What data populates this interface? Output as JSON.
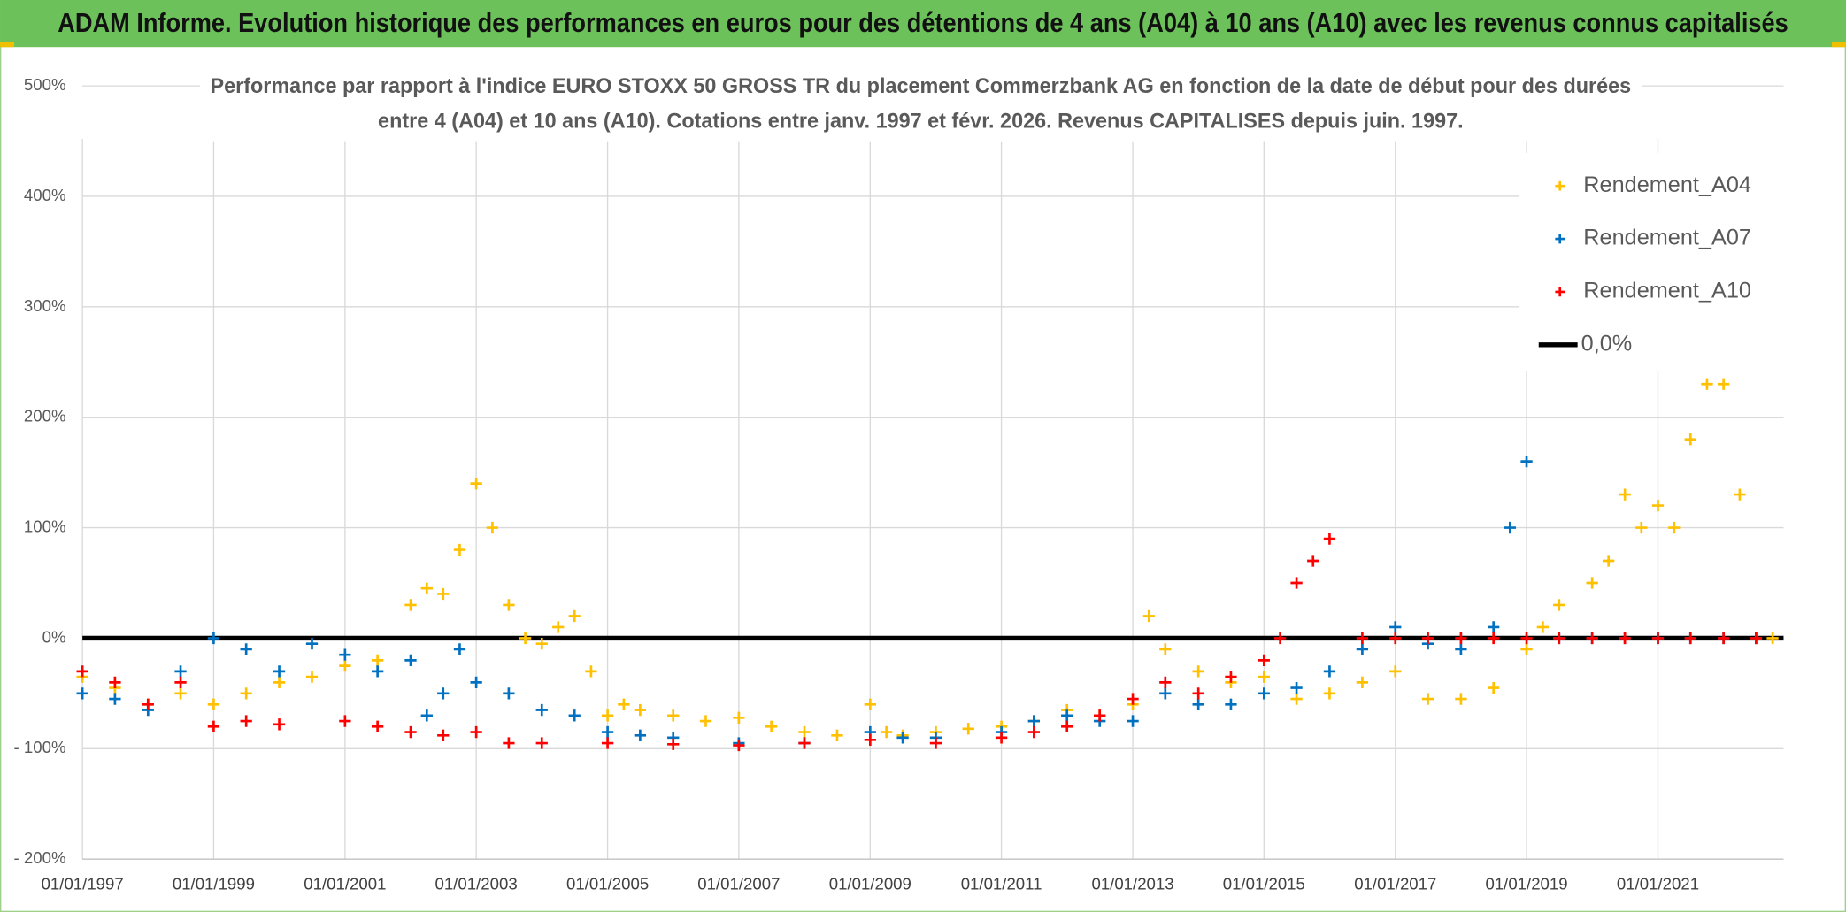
{
  "chart_data": {
    "type": "scatter",
    "header": "ADAM Informe. Evolution historique des performances en euros pour des détentions de 4 ans (A04) à 10 ans (A10) avec les revenus connus capitalisés",
    "title": [
      "Performance  par rapport à l'indice EURO STOXX 50 GROSS TR  du placement Commerzbank AG en fonction de la date de début pour des durées",
      "entre 4 (A04) et 10 ans (A10). Cotations entre janv. 1997 et févr. 2026. Revenus CAPITALISES depuis juin. 1997."
    ],
    "xlim": [
      "01/01/1997",
      "01/12/2022"
    ],
    "xticks": [
      "01/01/1997",
      "01/01/1999",
      "01/01/2001",
      "01/01/2003",
      "01/01/2005",
      "01/01/2007",
      "01/01/2009",
      "01/01/2011",
      "01/01/2013",
      "01/01/2015",
      "01/01/2017",
      "01/01/2019",
      "01/01/2021"
    ],
    "ylim": [
      -200,
      500
    ],
    "yticks": [
      {
        "value": 500,
        "label": "500%"
      },
      {
        "value": 400,
        "label": "400%"
      },
      {
        "value": 300,
        "label": "300%"
      },
      {
        "value": 200,
        "label": "200%"
      },
      {
        "value": 100,
        "label": "100%"
      },
      {
        "value": 0,
        "label": "0%"
      },
      {
        "value": -100,
        "label": "- 100%"
      },
      {
        "value": -200,
        "label": "- 200%"
      }
    ],
    "grid": true,
    "legend": "top-right",
    "series": [
      {
        "name": "Rendement_A04",
        "color": "#ffc000",
        "x": [
          "01/01/1997",
          "01/07/1997",
          "01/01/1998",
          "01/07/1998",
          "01/01/1999",
          "01/07/1999",
          "01/01/2000",
          "01/07/2000",
          "01/01/2001",
          "01/07/2001",
          "01/01/2002",
          "01/04/2002",
          "01/07/2002",
          "01/10/2002",
          "01/01/2003",
          "01/04/2003",
          "01/07/2003",
          "01/10/2003",
          "01/01/2004",
          "01/04/2004",
          "01/07/2004",
          "01/10/2004",
          "01/01/2005",
          "01/04/2005",
          "01/07/2005",
          "01/01/2006",
          "01/07/2006",
          "01/01/2007",
          "01/07/2007",
          "01/01/2008",
          "01/07/2008",
          "01/01/2009",
          "01/04/2009",
          "01/07/2009",
          "01/01/2010",
          "01/07/2010",
          "01/01/2011",
          "01/07/2011",
          "01/01/2012",
          "01/07/2012",
          "01/01/2013",
          "01/04/2013",
          "01/07/2013",
          "01/01/2014",
          "01/07/2014",
          "01/01/2015",
          "01/07/2015",
          "01/01/2016",
          "01/07/2016",
          "01/01/2017",
          "01/07/2017",
          "01/01/2018",
          "01/07/2018",
          "01/01/2019",
          "01/04/2019",
          "01/07/2019",
          "01/01/2020",
          "01/04/2020",
          "01/07/2020",
          "01/10/2020",
          "01/01/2021",
          "01/04/2021",
          "01/07/2021",
          "01/10/2021",
          "01/01/2022",
          "01/04/2022",
          "01/07/2022",
          "01/10/2022"
        ],
        "values": [
          -35,
          -45,
          -60,
          -50,
          -60,
          -50,
          -40,
          -35,
          -25,
          -20,
          30,
          45,
          40,
          80,
          140,
          100,
          30,
          0,
          -5,
          10,
          20,
          -30,
          -70,
          -60,
          -65,
          -70,
          -75,
          -72,
          -80,
          -85,
          -88,
          -60,
          -85,
          -88,
          -85,
          -82,
          -80,
          -75,
          -65,
          -70,
          -60,
          20,
          -10,
          -30,
          -40,
          -35,
          -55,
          -50,
          -40,
          -30,
          -55,
          -55,
          -45,
          -10,
          10,
          30,
          50,
          70,
          130,
          100,
          120,
          100,
          180,
          230,
          230,
          130,
          0,
          0
        ]
      },
      {
        "name": "Rendement_A07",
        "color": "#0070c0",
        "x": [
          "01/01/1997",
          "01/07/1997",
          "01/01/1998",
          "01/07/1998",
          "01/01/1999",
          "01/07/1999",
          "01/01/2000",
          "01/07/2000",
          "01/01/2001",
          "01/07/2001",
          "01/01/2002",
          "01/04/2002",
          "01/07/2002",
          "01/10/2002",
          "01/01/2003",
          "01/07/2003",
          "01/01/2004",
          "01/07/2004",
          "01/01/2005",
          "01/07/2005",
          "01/01/2006",
          "01/01/2007",
          "01/01/2008",
          "01/01/2009",
          "01/07/2009",
          "01/01/2010",
          "01/01/2011",
          "01/07/2011",
          "01/01/2012",
          "01/07/2012",
          "01/01/2013",
          "01/07/2013",
          "01/01/2014",
          "01/07/2014",
          "01/01/2015",
          "01/07/2015",
          "01/01/2016",
          "01/07/2016",
          "01/01/2017",
          "01/07/2017",
          "01/01/2018",
          "01/07/2018",
          "01/10/2018",
          "01/01/2019",
          "01/07/2019",
          "01/01/2020",
          "01/07/2020",
          "01/01/2021",
          "01/07/2021",
          "01/01/2022",
          "01/07/2022"
        ],
        "values": [
          -50,
          -55,
          -65,
          -30,
          0,
          -10,
          -30,
          -5,
          -15,
          -30,
          -20,
          -70,
          -50,
          -10,
          -40,
          -50,
          -65,
          -70,
          -85,
          -88,
          -90,
          -95,
          -95,
          -85,
          -90,
          -90,
          -85,
          -75,
          -70,
          -75,
          -75,
          -50,
          -60,
          -60,
          -50,
          -45,
          -30,
          -10,
          10,
          -5,
          -10,
          10,
          100,
          160,
          0,
          0,
          0,
          0,
          0,
          0,
          0
        ]
      },
      {
        "name": "Rendement_A10",
        "color": "#ff0000",
        "x": [
          "01/01/1997",
          "01/07/1997",
          "01/01/1998",
          "01/07/1998",
          "01/01/1999",
          "01/07/1999",
          "01/01/2000",
          "01/01/2001",
          "01/07/2001",
          "01/01/2002",
          "01/07/2002",
          "01/01/2003",
          "01/07/2003",
          "01/01/2004",
          "01/01/2005",
          "01/01/2006",
          "01/01/2007",
          "01/01/2008",
          "01/01/2009",
          "01/01/2010",
          "01/01/2011",
          "01/07/2011",
          "01/01/2012",
          "01/07/2012",
          "01/01/2013",
          "01/07/2013",
          "01/01/2014",
          "01/07/2014",
          "01/01/2015",
          "01/04/2015",
          "01/07/2015",
          "01/10/2015",
          "01/01/2016",
          "01/07/2016",
          "01/01/2017",
          "01/07/2017",
          "01/01/2018",
          "01/07/2018",
          "01/01/2019",
          "01/07/2019",
          "01/01/2020",
          "01/07/2020",
          "01/01/2021",
          "01/07/2021",
          "01/01/2022",
          "01/07/2022"
        ],
        "values": [
          -30,
          -40,
          -60,
          -40,
          -80,
          -75,
          -78,
          -75,
          -80,
          -85,
          -88,
          -85,
          -95,
          -95,
          -95,
          -96,
          -97,
          -95,
          -92,
          -95,
          -90,
          -85,
          -80,
          -70,
          -55,
          -40,
          -50,
          -35,
          -20,
          0,
          50,
          70,
          90,
          0,
          0,
          0,
          0,
          0,
          0,
          0,
          0,
          0,
          0,
          0,
          0,
          0
        ]
      },
      {
        "name": "0,0%",
        "color": "#000000",
        "kind": "line",
        "x": [
          "01/01/1997",
          "01/12/2022"
        ],
        "values": [
          0,
          0
        ]
      }
    ]
  }
}
